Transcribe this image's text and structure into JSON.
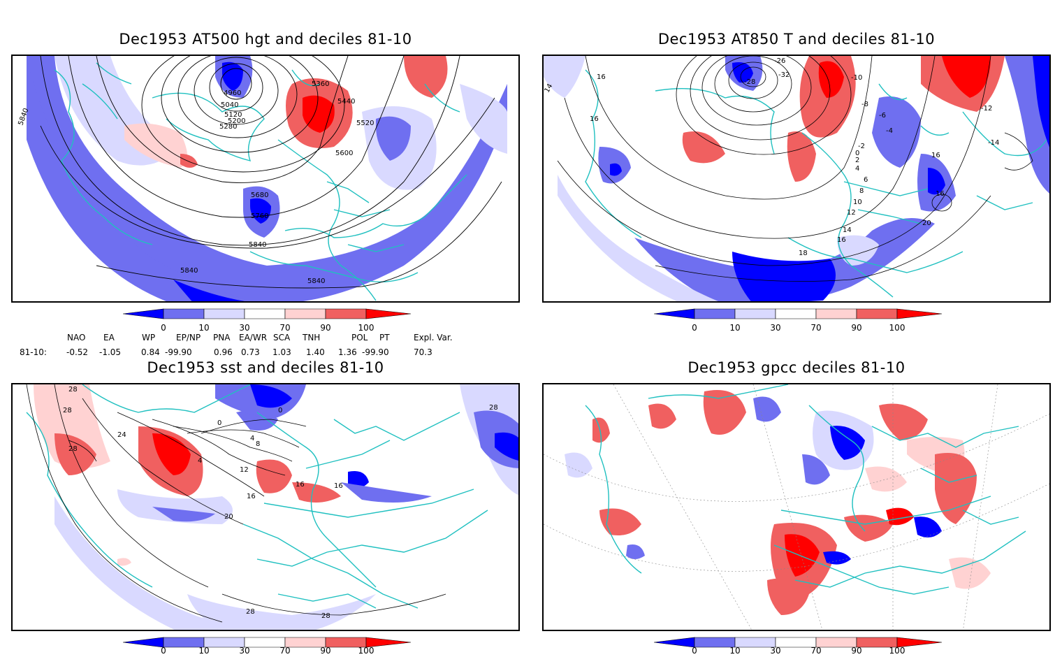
{
  "panels": [
    {
      "title": "Dec1953 AT500 hgt and deciles 81-10",
      "contour_labels": [
        "4960",
        "5040",
        "5120",
        "5200",
        "5280",
        "5360",
        "5440",
        "5520",
        "5600",
        "5680",
        "5760",
        "5840",
        "5840",
        "5840",
        "5840"
      ]
    },
    {
      "title": "Dec1953 AT850 T and deciles 81-10",
      "contour_labels": [
        "16",
        "14",
        "16",
        "-28",
        "-32",
        "-26",
        "-10",
        "-8",
        "-6",
        "-4",
        "-2",
        "0",
        "2",
        "4",
        "6",
        "8",
        "10",
        "12",
        "14",
        "16",
        "18",
        "20",
        "16",
        "16",
        "-12",
        "-14"
      ]
    },
    {
      "title": "Dec1953 sst and deciles 81-10",
      "contour_labels": [
        "28",
        "28",
        "24",
        "28",
        "4",
        "0",
        "0",
        "4",
        "8",
        "12",
        "16",
        "16",
        "16",
        "20",
        "28",
        "28",
        "28"
      ]
    },
    {
      "title": "Dec1953 gpcc deciles 81-10",
      "contour_labels": []
    }
  ],
  "colorbar": {
    "ticks": [
      "0",
      "10",
      "30",
      "70",
      "90",
      "100"
    ],
    "colors": [
      "#0000ff",
      "#6f6ff0",
      "#d9d9ff",
      "#ffffff",
      "#ffd2d2",
      "#f06060",
      "#ff0000"
    ]
  },
  "indices": {
    "row_label": "81-10:",
    "headers": [
      "NAO",
      "EA",
      "WP",
      "EP/NP",
      "PNA",
      "EA/WR",
      "SCA",
      "TNH",
      "POL",
      "PT",
      "Expl. Var."
    ],
    "values": [
      "-0.52",
      "-1.05",
      "0.84",
      "-99.90",
      "0.96",
      "0.73",
      "1.03",
      "1.40",
      "1.36",
      "-99.90",
      "70.3"
    ]
  }
}
